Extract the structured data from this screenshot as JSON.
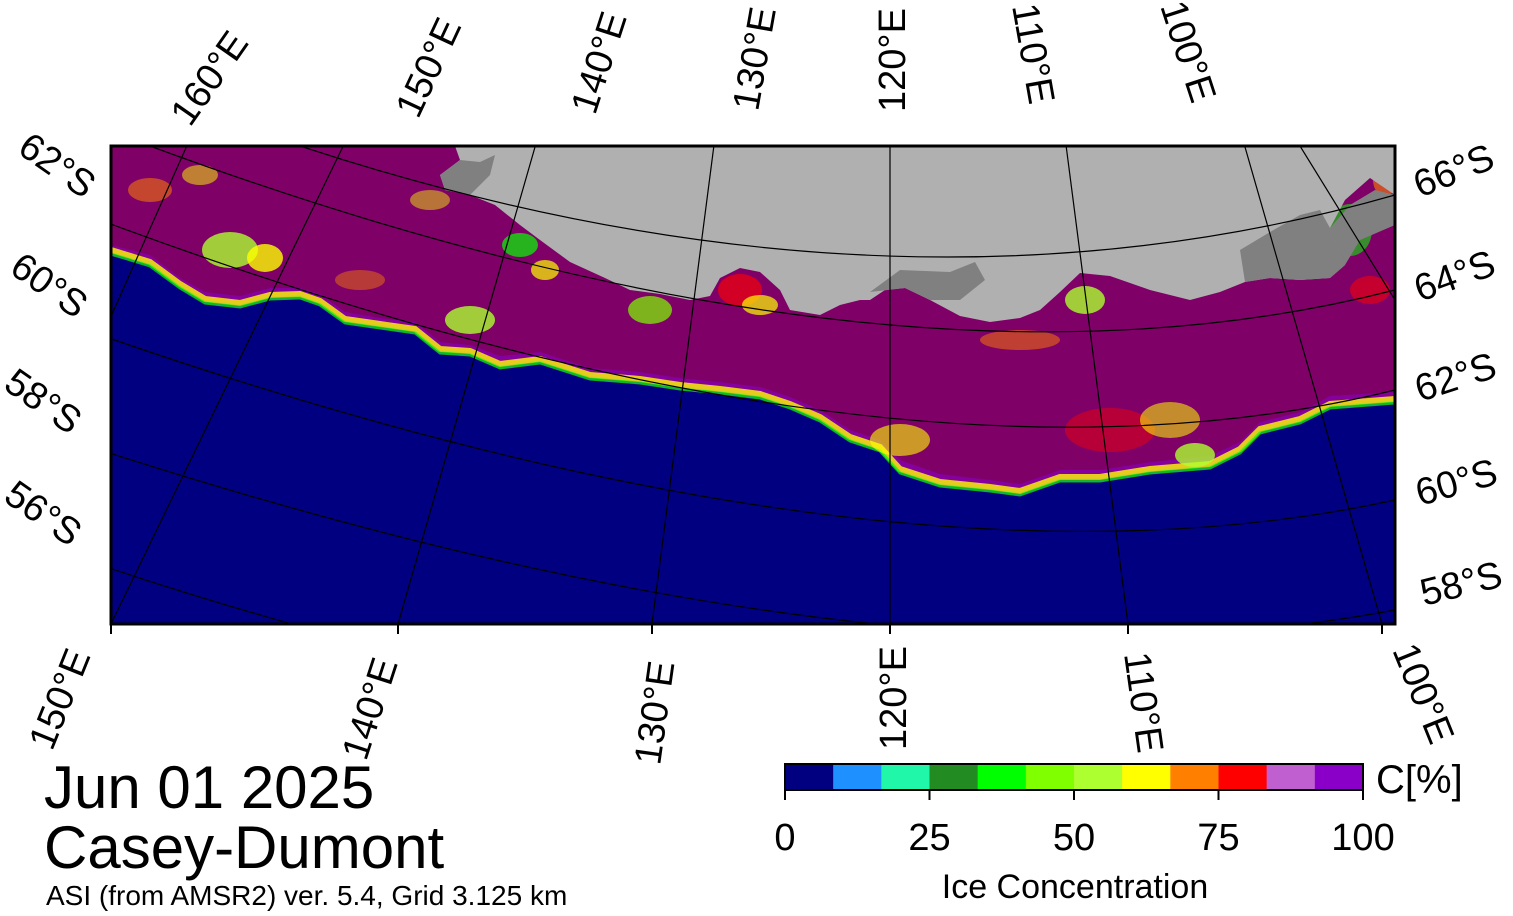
{
  "map": {
    "date": "Jun 01 2025",
    "region": "Casey-Dumont",
    "source": "ASI (from AMSR2) ver. 5.4,  Grid 3.125 km",
    "colors": {
      "ocean": "#000080",
      "land": "#b0b0b0",
      "ice_shelf": "#808080",
      "high_ice": "#7f0067",
      "frame": "#000000"
    },
    "top_lon_labels": [
      "160°E",
      "150°E",
      "140°E",
      "130°E",
      "120°E",
      "110°E",
      "100°E"
    ],
    "bottom_lon_labels": [
      "150°E",
      "140°E",
      "130°E",
      "120°E",
      "110°E",
      "100°E"
    ],
    "left_lat_labels": [
      "62°S",
      "60°S",
      "58°S",
      "56°S"
    ],
    "right_lat_labels": [
      "66°S",
      "64°S",
      "62°S",
      "60°S",
      "58°S"
    ]
  },
  "colorbar": {
    "title": "Ice Concentration",
    "unit": "C[%]",
    "ticks": [
      "0",
      "25",
      "50",
      "75",
      "100"
    ],
    "tick_values": [
      0,
      25,
      50,
      75,
      100
    ],
    "range": [
      0,
      100
    ],
    "colors": [
      "#000080",
      "#1e90ff",
      "#20f7a8",
      "#228b22",
      "#00ff00",
      "#7fff00",
      "#adff2f",
      "#ffff00",
      "#ff8000",
      "#ff0000",
      "#c060d0",
      "#8b00c8"
    ]
  }
}
